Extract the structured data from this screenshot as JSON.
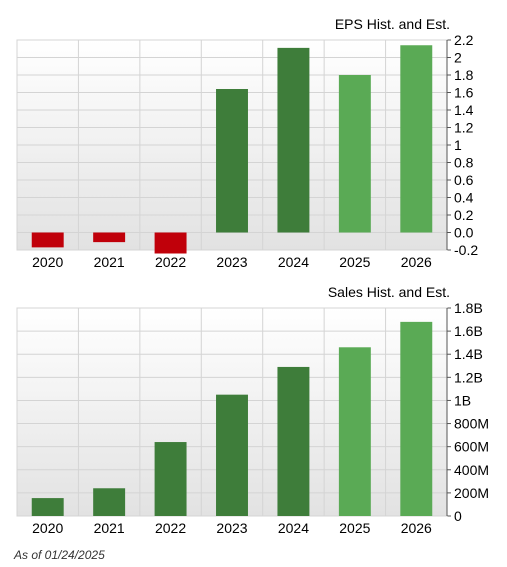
{
  "colors": {
    "historical_positive": "#3e7d3a",
    "historical_negative": "#c0000a",
    "estimate": "#5aaa55",
    "plot_bg_top": "#ffffff",
    "plot_bg_bottom": "#e2e2e2",
    "grid": "#d4d4d4",
    "axis": "#555555"
  },
  "footnote": "As of 01/24/2025",
  "chart_data": [
    {
      "type": "bar",
      "title": "EPS Hist. and Est.",
      "categories": [
        "2020",
        "2021",
        "2022",
        "2023",
        "2024",
        "2025",
        "2026"
      ],
      "values": [
        -0.17,
        -0.11,
        -0.24,
        1.64,
        2.11,
        1.8,
        2.14
      ],
      "bar_kind": [
        "historical",
        "historical",
        "historical",
        "historical",
        "historical",
        "estimate",
        "estimate"
      ],
      "ylim": [
        -0.2,
        2.2
      ],
      "yticks": [
        "2.2",
        "2",
        "1.8",
        "1.6",
        "1.4",
        "1.2",
        "1",
        "0.8",
        "0.6",
        "0.4",
        "0.2",
        "0.0",
        "-0.2"
      ],
      "ytick_values": [
        2.2,
        2.0,
        1.8,
        1.6,
        1.4,
        1.2,
        1.0,
        0.8,
        0.6,
        0.4,
        0.2,
        0.0,
        -0.2
      ],
      "grid": true,
      "xlabel": "",
      "ylabel": ""
    },
    {
      "type": "bar",
      "title": "Sales Hist. and Est.",
      "categories": [
        "2020",
        "2021",
        "2022",
        "2023",
        "2024",
        "2025",
        "2026"
      ],
      "values": [
        155,
        240,
        640,
        1050,
        1290,
        1460,
        1680
      ],
      "value_unit": "M",
      "bar_kind": [
        "historical",
        "historical",
        "historical",
        "historical",
        "historical",
        "estimate",
        "estimate"
      ],
      "ylim": [
        0,
        1800
      ],
      "yticks": [
        "1.8B",
        "1.6B",
        "1.4B",
        "1.2B",
        "1B",
        "800M",
        "600M",
        "400M",
        "200M",
        "0"
      ],
      "ytick_values": [
        1800,
        1600,
        1400,
        1200,
        1000,
        800,
        600,
        400,
        200,
        0
      ],
      "grid": true,
      "xlabel": "",
      "ylabel": ""
    }
  ]
}
